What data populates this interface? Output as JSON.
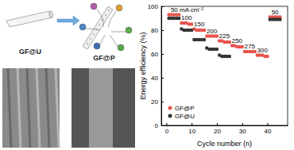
{
  "chart_data": {
    "type": "scatter",
    "xlabel": "Cycle number (n)",
    "ylabel": "Energy efficiency (%)",
    "x": [
      1,
      2,
      3,
      4,
      5,
      6,
      7,
      8,
      9,
      10,
      11,
      12,
      13,
      14,
      15,
      16,
      17,
      18,
      19,
      20,
      21,
      22,
      23,
      24,
      25,
      26,
      27,
      28,
      29,
      30,
      31,
      32,
      33,
      34,
      35,
      36,
      37,
      38,
      39,
      40,
      41,
      42,
      43,
      44,
      45
    ],
    "series": [
      {
        "name": "GF@P",
        "color": "#e8534c",
        "marker": "circle",
        "values": [
          93,
          93,
          93,
          93,
          93,
          86,
          86,
          86,
          85,
          85,
          81,
          80,
          80,
          80,
          80,
          75,
          75,
          75,
          75,
          75,
          71,
          71,
          70,
          70,
          70,
          67,
          67,
          66,
          66,
          66,
          62,
          62,
          62,
          62,
          62,
          59,
          59,
          59,
          58,
          58,
          91,
          91,
          91,
          91,
          91
        ]
      },
      {
        "name": "GF@U",
        "color": "#333333",
        "marker": "circle",
        "values": [
          90,
          90,
          90,
          90,
          90,
          81,
          80,
          80,
          80,
          80,
          72,
          72,
          72,
          72,
          72,
          65,
          64,
          64,
          64,
          64,
          59,
          58,
          58,
          58,
          58,
          null,
          null,
          null,
          null,
          null,
          null,
          null,
          null,
          null,
          null,
          null,
          null,
          null,
          null,
          null,
          89,
          89,
          89,
          89,
          89
        ]
      }
    ],
    "annotations": [
      "50 mA cm⁻²",
      "100",
      "150",
      "200",
      "225",
      "250",
      "275",
      "300",
      "50"
    ],
    "xlim": [
      -2,
      48
    ],
    "xticks": [
      0,
      10,
      20,
      30,
      40
    ],
    "ylim": [
      0,
      100
    ],
    "yticks": [
      0,
      20,
      40,
      60,
      80,
      100
    ],
    "legend": "lower left",
    "grid": false
  },
  "diagram": {
    "labels": [
      "GF@U",
      "GF@P"
    ]
  }
}
